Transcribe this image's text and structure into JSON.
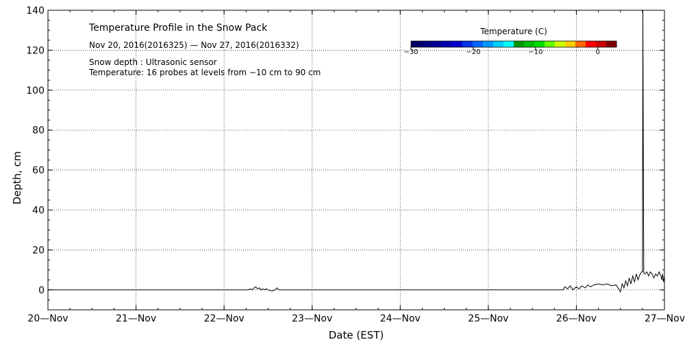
{
  "chart_data": {
    "type": "line",
    "title": "Temperature Profile in the Snow Pack",
    "subtitle": "Nov 20, 2016(2016325) — Nov 27, 2016(2016332)",
    "notes": [
      "Snow depth : Ultrasonic sensor",
      "Temperature: 16 probes at levels from −10 cm to 90 cm"
    ],
    "xlabel": "Date (EST)",
    "ylabel": "Depth, cm",
    "x_ticks": [
      "20—Nov",
      "21—Nov",
      "22—Nov",
      "23—Nov",
      "24—Nov",
      "25—Nov",
      "26—Nov",
      "27—Nov"
    ],
    "y_ticks": [
      "0",
      "20",
      "40",
      "60",
      "80",
      "100",
      "120",
      "140"
    ],
    "xlim": [
      0,
      7
    ],
    "ylim": [
      -10,
      140
    ],
    "grid": true,
    "colorbar": {
      "label": "Temperature (C)",
      "range": [
        -30,
        3
      ],
      "tick_values": [
        -30,
        -20,
        -10,
        0
      ],
      "tick_labels": [
        "−30",
        "−20",
        "−10",
        "0"
      ],
      "colors": [
        "#000066",
        "#00007f",
        "#000099",
        "#0000b2",
        "#0000cc",
        "#0033e5",
        "#0066ff",
        "#0099ff",
        "#00ccff",
        "#00ffff",
        "#009900",
        "#00bb00",
        "#00dd00",
        "#66ff00",
        "#ccff00",
        "#ffcc00",
        "#ff6600",
        "#ff0000",
        "#cc0000",
        "#800000"
      ]
    },
    "series": [
      {
        "x": [
          0,
          0.5,
          1,
          1.5,
          2,
          2.2,
          2.28,
          2.3,
          2.32,
          2.34,
          2.36,
          2.38,
          2.4,
          2.42,
          2.44,
          2.46,
          2.48,
          2.5,
          2.54,
          2.58,
          2.6,
          2.62,
          2.65,
          3,
          3.5,
          4,
          4.5,
          5,
          5.5,
          5.85,
          5.87,
          5.9,
          5.93,
          5.96,
          6,
          6.03,
          6.06,
          6.1,
          6.13,
          6.16,
          6.2,
          6.25,
          6.3,
          6.35,
          6.4,
          6.45,
          6.48,
          6.5,
          6.52,
          6.54,
          6.56,
          6.58,
          6.6,
          6.62,
          6.64,
          6.66,
          6.68,
          6.7,
          6.72,
          6.74,
          6.75,
          6.755,
          6.76,
          6.765,
          6.77,
          6.78,
          6.8,
          6.82,
          6.84,
          6.86,
          6.88,
          6.9,
          6.92,
          6.94,
          6.96,
          6.97,
          6.98,
          6.99,
          7
        ],
        "y": [
          0,
          0,
          0,
          0,
          0,
          0,
          0,
          0.5,
          0,
          1,
          1.5,
          0.5,
          1,
          0,
          0.5,
          0,
          0.5,
          0,
          -0.5,
          0,
          1,
          0,
          0,
          0,
          0,
          0,
          0,
          0,
          0,
          0,
          1.5,
          0.5,
          2,
          0,
          1.5,
          0.5,
          2,
          1,
          2.5,
          1.5,
          2.5,
          3,
          2.5,
          3,
          2,
          2.5,
          0.5,
          -1,
          3,
          1,
          4.5,
          2,
          6,
          3,
          7,
          4,
          8,
          5,
          7.5,
          9,
          9,
          140,
          75,
          9,
          8,
          8,
          9,
          7,
          9,
          8,
          6,
          8,
          7,
          9,
          7,
          5,
          8,
          4,
          7
        ]
      }
    ]
  }
}
